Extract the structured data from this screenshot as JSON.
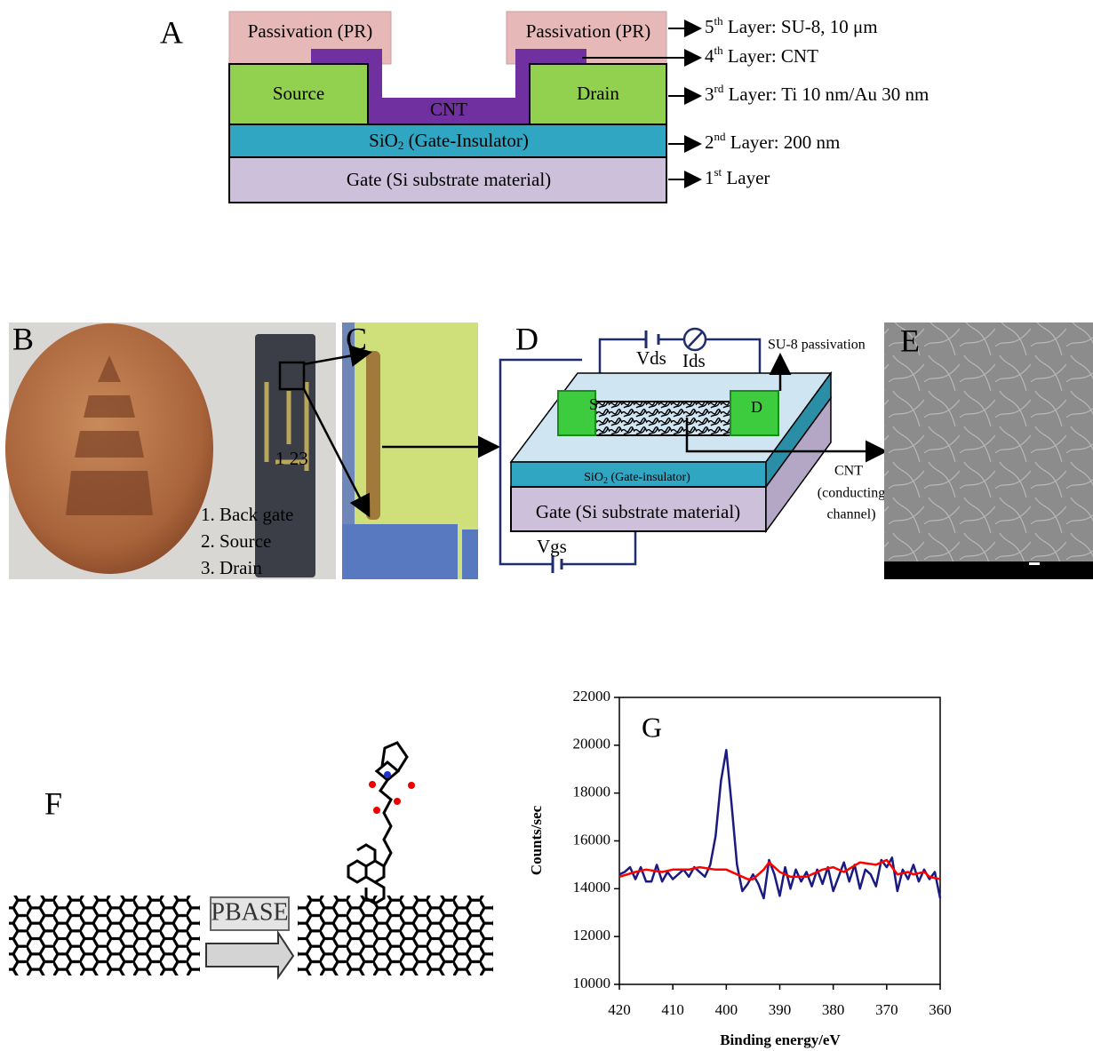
{
  "panel_a": {
    "label": "A",
    "passivation_left": "Passivation (PR)",
    "passivation_right": "Passivation (PR)",
    "source": "Source",
    "drain": "Drain",
    "cnt": "CNT",
    "insulator": {
      "main": "SiO",
      "sub": "2",
      "rest": " (Gate-Insulator)"
    },
    "gate": "Gate (Si substrate material)",
    "annotations": [
      {
        "num": "5",
        "sup": "th",
        "text": " Layer: SU-8, 10 μm"
      },
      {
        "num": "4",
        "sup": "th",
        "text": " Layer: CNT"
      },
      {
        "num": "3",
        "sup": "rd",
        "text": " Layer: Ti 10 nm/Au 30 nm"
      },
      {
        "num": "2",
        "sup": "nd",
        "text": " Layer: 200 nm"
      },
      {
        "num": "1",
        "sup": "st",
        "text": " Layer"
      }
    ]
  },
  "panel_b": {
    "label": "B",
    "pads": "1  23",
    "legend": [
      "1. Back gate",
      "2. Source",
      "3. Drain"
    ]
  },
  "panel_c": {
    "label": "C"
  },
  "panel_d": {
    "label": "D",
    "vds": "Vds",
    "ids": "Ids",
    "passivation": "SU-8 passivation",
    "source": "S",
    "drain": "D",
    "insulator": {
      "main": "SiO",
      "sub": "2",
      "rest": " (Gate-insulator)"
    },
    "gate": "Gate (Si substrate material)",
    "channel": [
      "CNT",
      "(conducting",
      "channel)"
    ],
    "vgs": "Vgs"
  },
  "panel_e": {
    "label": "E"
  },
  "panel_f": {
    "label": "F",
    "step": "PBASE"
  },
  "chart_data": {
    "type": "line",
    "title": "G",
    "x_label": "Binding energy/eV",
    "y_label": "Counts/sec",
    "xlim": [
      420,
      360
    ],
    "ylim": [
      10000,
      22000
    ],
    "xticks": [
      420,
      410,
      400,
      390,
      380,
      370,
      360
    ],
    "yticks": [
      10000,
      12000,
      14000,
      16000,
      18000,
      20000,
      22000
    ],
    "series": [
      {
        "color": "#1a1a80",
        "x": [
          420,
          419,
          418,
          417,
          416,
          415,
          414,
          413,
          412,
          411,
          410,
          409,
          408,
          407,
          406,
          405,
          404,
          403,
          402,
          401,
          400,
          399,
          398,
          397,
          396,
          395,
          394,
          393,
          392,
          391,
          390,
          389,
          388,
          387,
          386,
          385,
          384,
          383,
          382,
          381,
          380,
          379,
          378,
          377,
          376,
          375,
          374,
          373,
          372,
          371,
          370,
          369,
          368,
          367,
          366,
          365,
          364,
          363,
          362,
          361,
          360
        ],
        "values": [
          14600,
          14700,
          14900,
          14400,
          14900,
          14300,
          14300,
          15000,
          14300,
          14700,
          14400,
          14600,
          14800,
          14500,
          14900,
          14700,
          14500,
          15000,
          16200,
          18500,
          19800,
          17500,
          15000,
          13900,
          14200,
          14600,
          14200,
          13600,
          15200,
          14600,
          13700,
          14900,
          14000,
          14800,
          14300,
          14700,
          14100,
          14800,
          14200,
          14900,
          13900,
          14500,
          15100,
          14300,
          15000,
          14000,
          14800,
          14600,
          14100,
          15200,
          14900,
          15300,
          13900,
          14800,
          14400,
          15000,
          14300,
          14800,
          14400,
          14700,
          13600
        ]
      },
      {
        "color": "#ff0000",
        "x": [
          420,
          417,
          415,
          412,
          410,
          407,
          405,
          402,
          400,
          398,
          396,
          395,
          393,
          392,
          390,
          388,
          385,
          382,
          380,
          378,
          375,
          372,
          370,
          368,
          366,
          365,
          363,
          362,
          360
        ],
        "values": [
          14500,
          14700,
          14800,
          14700,
          14800,
          14800,
          14900,
          14800,
          14800,
          14600,
          14400,
          14400,
          14800,
          15100,
          14700,
          14500,
          14500,
          14800,
          14900,
          14700,
          15100,
          15000,
          15200,
          14600,
          14700,
          14600,
          14700,
          14500,
          14400
        ]
      }
    ]
  }
}
